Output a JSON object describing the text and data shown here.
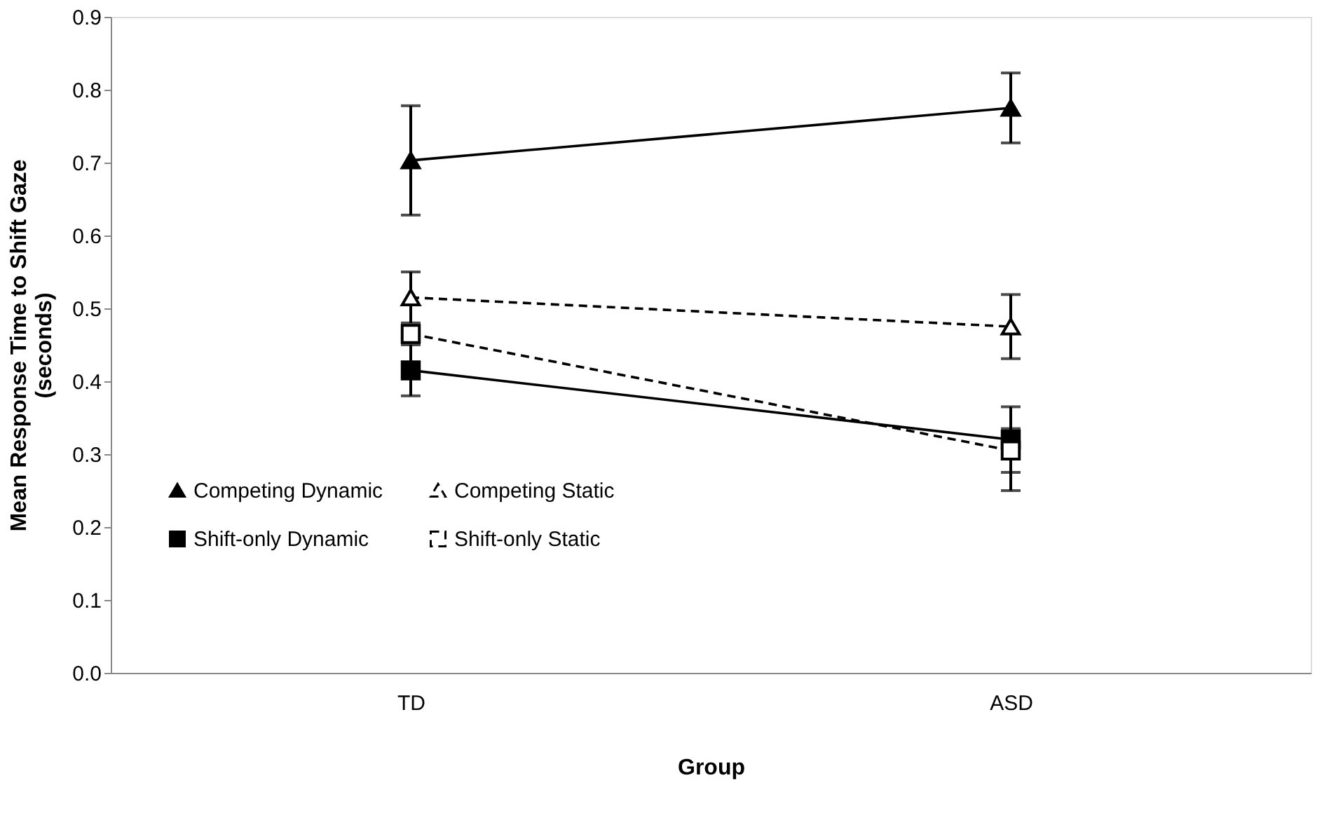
{
  "chart_data": {
    "type": "line",
    "xlabel": "Group",
    "ylabel": "Mean Response Time to Shift Gaze (seconds)",
    "categories": [
      "TD",
      "ASD"
    ],
    "series": [
      {
        "name": "Competing Dynamic",
        "color": "#000000",
        "marker": "triangle",
        "line_style": "solid",
        "values": [
          0.703,
          0.775
        ],
        "errors": [
          0.075,
          0.048
        ]
      },
      {
        "name": "Competing Static",
        "color": "#000000",
        "marker": "triangle",
        "line_style": "dashed",
        "values": [
          0.515,
          0.475
        ],
        "errors": [
          0.035,
          0.044
        ]
      },
      {
        "name": "Shift-only Dynamic",
        "color": "#000000",
        "marker": "square",
        "line_style": "solid",
        "values": [
          0.415,
          0.32
        ],
        "errors": [
          0.035,
          0.045
        ]
      },
      {
        "name": "Shift-only Static",
        "color": "#000000",
        "marker": "square",
        "line_style": "dashed",
        "values": [
          0.465,
          0.305
        ],
        "errors": [
          null,
          [
            0.25,
            0.335
          ]
        ]
      }
    ],
    "ylim": [
      0,
      0.9
    ],
    "yticks": [
      {
        "value": 0,
        "label": "0.0"
      },
      0.1,
      0.2,
      0.3,
      0.4,
      0.5,
      0.6,
      0.7,
      0.8,
      0.9
    ],
    "grid": false,
    "legend": "bottom left"
  }
}
